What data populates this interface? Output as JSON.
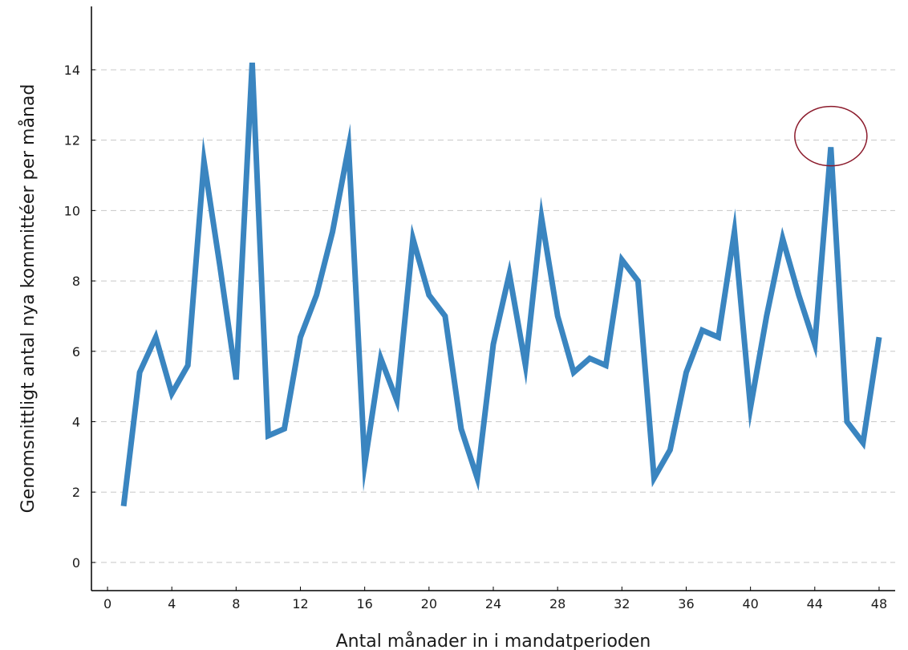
{
  "chart_data": {
    "type": "line",
    "xlabel": "Antal månader in i mandatperioden",
    "ylabel": "Genomsnittligt antal nya kommittéer per månad",
    "xlim": [
      -1,
      49
    ],
    "ylim": [
      -0.8,
      15.8
    ],
    "xticks": [
      "0",
      "4",
      "8",
      "12",
      "16",
      "20",
      "24",
      "28",
      "32",
      "36",
      "40",
      "44",
      "48"
    ],
    "yticks": [
      "0",
      "2",
      "4",
      "6",
      "8",
      "10",
      "12",
      "14"
    ],
    "grid": "horizontal dashed",
    "series": [
      {
        "color": "#3a85c0",
        "x": [
          1,
          2,
          3,
          4,
          5,
          6,
          7,
          8,
          9,
          10,
          11,
          12,
          13,
          14,
          15,
          16,
          17,
          18,
          19,
          20,
          21,
          22,
          23,
          24,
          25,
          26,
          27,
          28,
          29,
          30,
          31,
          32,
          33,
          34,
          35,
          36,
          37,
          38,
          39,
          40,
          41,
          42,
          43,
          44,
          45,
          46,
          47,
          48
        ],
        "y": [
          1.6,
          5.4,
          6.4,
          4.8,
          5.6,
          11.4,
          8.4,
          5.2,
          14.2,
          3.6,
          3.8,
          6.4,
          7.6,
          9.4,
          11.8,
          2.8,
          5.8,
          4.6,
          9.2,
          7.6,
          7.0,
          3.8,
          2.4,
          6.2,
          8.2,
          5.6,
          9.8,
          7.0,
          5.4,
          5.8,
          5.6,
          8.6,
          8.0,
          2.4,
          3.2,
          5.4,
          6.6,
          6.4,
          9.4,
          4.4,
          7.0,
          9.2,
          7.6,
          6.2,
          11.8,
          4.0,
          3.4,
          6.4
        ]
      }
    ],
    "annotations": [
      {
        "type": "ellipse",
        "x": 45,
        "y": 12,
        "color": "#8b1a2b"
      }
    ]
  }
}
